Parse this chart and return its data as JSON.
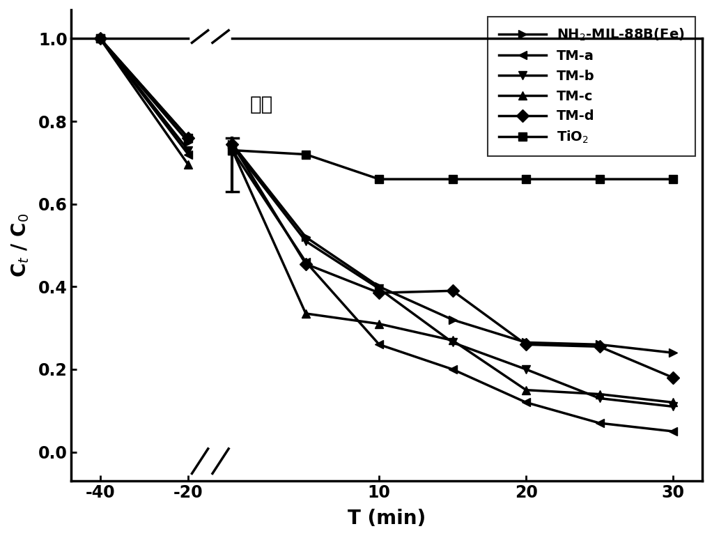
{
  "xlabel": "T (min)",
  "ylabel": "C$_t$ / C$_0$",
  "series": [
    {
      "label": "NH$_2$-MIL-88B(Fe)",
      "x_real": [
        -40,
        -20,
        0,
        5,
        10,
        15,
        20,
        25,
        30
      ],
      "y": [
        1.0,
        0.75,
        0.745,
        0.52,
        0.4,
        0.32,
        0.265,
        0.26,
        0.24
      ],
      "marker": ">"
    },
    {
      "label": "TM-a",
      "x_real": [
        -40,
        -20,
        0,
        5,
        10,
        15,
        20,
        25,
        30
      ],
      "y": [
        1.0,
        0.72,
        0.73,
        0.46,
        0.26,
        0.2,
        0.12,
        0.07,
        0.05
      ],
      "marker": "<"
    },
    {
      "label": "TM-b",
      "x_real": [
        -40,
        -20,
        0,
        5,
        10,
        15,
        20,
        25,
        30
      ],
      "y": [
        1.0,
        0.73,
        0.74,
        0.51,
        0.395,
        0.265,
        0.2,
        0.13,
        0.11
      ],
      "marker": "v"
    },
    {
      "label": "TM-c",
      "x_real": [
        -40,
        -20,
        0,
        5,
        10,
        15,
        20,
        25,
        30
      ],
      "y": [
        1.0,
        0.695,
        0.73,
        0.335,
        0.31,
        0.27,
        0.15,
        0.14,
        0.12
      ],
      "marker": "^"
    },
    {
      "label": "TM-d",
      "x_real": [
        -40,
        -20,
        0,
        5,
        10,
        15,
        20,
        25,
        30
      ],
      "y": [
        1.0,
        0.76,
        0.745,
        0.455,
        0.385,
        0.39,
        0.26,
        0.255,
        0.18
      ],
      "marker": "D"
    },
    {
      "label": "TiO$_2$",
      "x_real": [
        -40,
        -20,
        0,
        5,
        10,
        15,
        20,
        25,
        30
      ],
      "y": [
        1.0,
        0.76,
        0.73,
        0.72,
        0.66,
        0.66,
        0.66,
        0.66,
        0.66
      ],
      "marker": "s"
    }
  ],
  "yticks": [
    0.0,
    0.2,
    0.4,
    0.6,
    0.8,
    1.0
  ],
  "color": "#000000",
  "linewidth": 2.5,
  "markersize": 9,
  "fontsize_label": 20,
  "fontsize_tick": 17,
  "fontsize_legend": 14,
  "fontsize_annotation": 20,
  "light_label": "光照"
}
